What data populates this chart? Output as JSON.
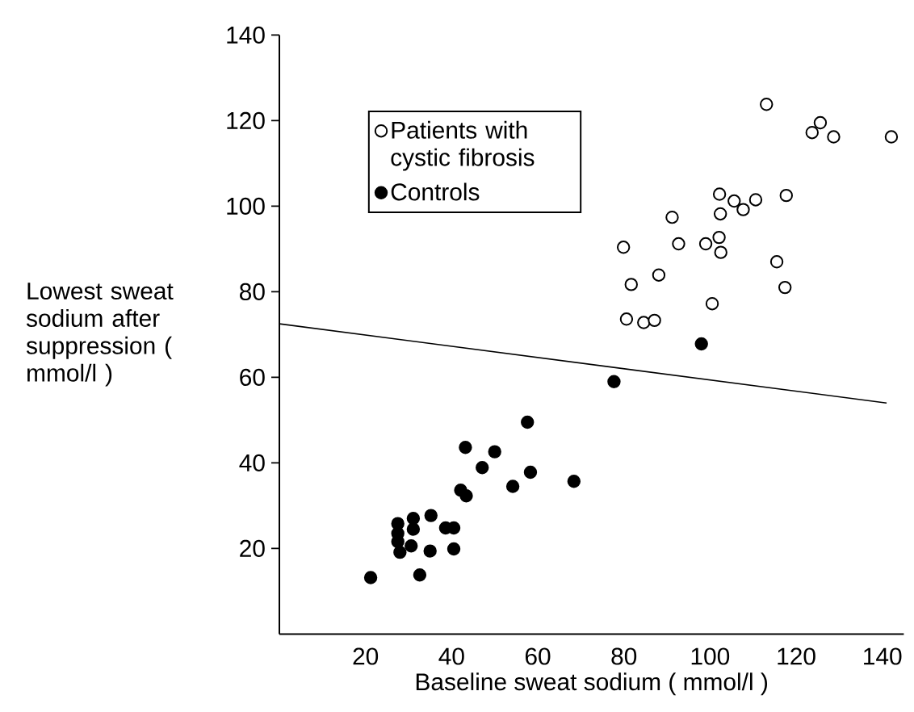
{
  "chart_data": {
    "type": "scatter",
    "xlabel": "Baseline sweat sodium ( mmol/l )",
    "ylabel": "Lowest sweat sodium after suppression ( mmol/l )",
    "xlim": [
      0,
      145
    ],
    "ylim": [
      0,
      140
    ],
    "xticks": [
      20,
      40,
      60,
      80,
      100,
      120,
      140
    ],
    "yticks": [
      20,
      40,
      60,
      80,
      100,
      120,
      140
    ],
    "legend": "top left",
    "series": [
      {
        "name": "Patients with cystic fibrosis",
        "color": "#ffffff",
        "marker": "circle",
        "x": [
          113.1,
          125.6,
          123.7,
          128.7,
          142.1,
          102.2,
          105.6,
          107.7,
          110.6,
          117.7,
          102.4,
          91.2,
          92.7,
          99,
          102.1,
          102.5,
          79.9,
          88.1,
          81.7,
          115.5,
          117.4,
          100.5,
          80.6,
          84.6,
          87.1
        ],
        "values": [
          123.8,
          119.5,
          117.2,
          116.2,
          116.2,
          102.8,
          101.2,
          99.2,
          101.5,
          102.5,
          98.2,
          97.4,
          91.2,
          91.2,
          92.7,
          89.2,
          90.4,
          83.9,
          81.7,
          87,
          81,
          77.2,
          73.6,
          72.8,
          73.3
        ]
      },
      {
        "name": "Controls",
        "color": "#000000",
        "marker": "circle",
        "x": [
          21.2,
          32.6,
          27.5,
          27.5,
          27.5,
          28,
          31.1,
          31.1,
          30.6,
          35.2,
          35,
          38.6,
          40.5,
          40.5,
          42.1,
          43.4,
          43.2,
          47.1,
          50,
          54.2,
          58.3,
          57.6,
          68.4,
          77.7,
          98
        ],
        "values": [
          13.2,
          13.8,
          25.8,
          23.5,
          21.6,
          19.1,
          27,
          24.5,
          20.6,
          27.7,
          19.4,
          24.8,
          24.8,
          19.9,
          33.6,
          32.3,
          43.6,
          38.9,
          42.6,
          34.5,
          37.8,
          49.5,
          35.7,
          59,
          67.8
        ]
      },
      {
        "type": "line",
        "color": "#000000",
        "marker": "none",
        "x": [
          0,
          141
        ],
        "values": [
          72.5,
          54
        ]
      }
    ]
  }
}
